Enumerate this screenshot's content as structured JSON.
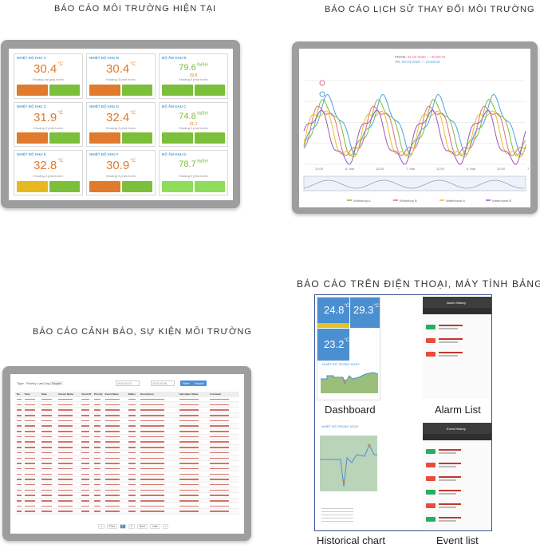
{
  "sections": {
    "current": "BÁO CÁO MÔI TRƯỜNG HIỆN TẠI",
    "history": "BÁO CÁO LỊCH SỬ THAY ĐỔI MÔI TRƯỜNG",
    "alarm": "BÁO CÁO CẢNH BÁO, SỰ KIỆN MÔI TRƯỜNG",
    "mobile": "BÁO CÁO TRÊN ĐIỆN THOẠI, MÁY TÍNH BẢNG"
  },
  "current_dashboard": {
    "tiles": [
      {
        "title": "NHIỆT ĐỘ KHU A",
        "value": "30.4",
        "unit": "°C",
        "sub": "Khoảng vài giây trước",
        "kind": "temp",
        "colors": [
          "#e07a2c",
          "#7bbf3a"
        ]
      },
      {
        "title": "NHIỆT ĐỘ KHU B",
        "value": "30.4",
        "unit": "°C",
        "sub": "Khoảng 3 phút trước",
        "kind": "temp",
        "colors": [
          "#e07a2c",
          "#7bbf3a"
        ]
      },
      {
        "title": "ĐỘ ẨM KHU B",
        "value": "79.6",
        "unit": "%RH",
        "sub2": "29.8",
        "sub": "Khoảng 3 phút trước",
        "kind": "hum",
        "colors": [
          "#7bbf3a",
          "#7bbf3a"
        ]
      },
      {
        "title": "NHIỆT ĐỘ KHU C",
        "value": "31.9",
        "unit": "°C",
        "sub": "Khoảng 3 phút trước",
        "kind": "temp",
        "colors": [
          "#e07a2c",
          "#7bbf3a"
        ]
      },
      {
        "title": "NHIỆT ĐỘ KHU D",
        "value": "32.4",
        "unit": "°C",
        "sub": "Khoảng 3 phút trước",
        "kind": "temp",
        "colors": [
          "#e07a2c",
          "#7bbf3a"
        ]
      },
      {
        "title": "ĐỘ ẨM KHU C",
        "value": "74.8",
        "unit": "%RH",
        "sub2": "31.1",
        "sub": "Khoảng 3 phút trước",
        "kind": "hum",
        "colors": [
          "#7bbf3a",
          "#7bbf3a"
        ]
      },
      {
        "title": "NHIỆT ĐỘ KHU E",
        "value": "32.8",
        "unit": "°C",
        "sub": "Khoảng 3 phút trước",
        "kind": "temp",
        "colors": [
          "#e8b820",
          "#7bbf3a"
        ]
      },
      {
        "title": "NHIỆT ĐỘ KHU F",
        "value": "30.9",
        "unit": "°C",
        "sub": "Khoảng 3 phút trước",
        "kind": "temp",
        "colors": [
          "#e07a2c",
          "#7bbf3a"
        ]
      },
      {
        "title": "ĐỘ ẨM KHU D",
        "value": "78.7",
        "unit": "%RH",
        "sub": "Khoảng 3 phút trước",
        "kind": "hum",
        "colors": [
          "#8fdc5a",
          "#8fdc5a"
        ]
      }
    ]
  },
  "history_chart": {
    "from_label": "FROM:",
    "to_label": "TO:",
    "from_value": "01-03-2020 — 00:00:34",
    "to_value": "08-03-2020 — 23:59:59",
    "x_ticks": [
      "12:00",
      "6. Mar",
      "12:00",
      "7. Mar",
      "12:00",
      "6. Mar",
      "12:00",
      "7. Mar"
    ],
    "legend": [
      "Workshop A",
      "Workshop B",
      "Warehouse A",
      "Warehouse B"
    ],
    "series_colors": [
      "#4aa3df",
      "#7bbf3a",
      "#e06a8a",
      "#e8c020",
      "#9b59b6"
    ]
  },
  "alarm_table": {
    "toolbar": [
      "Type",
      "Priority",
      "Last Day",
      "Export"
    ],
    "date_from": "2020-03-01",
    "date_to": "2020-03-08",
    "buttons": [
      "Filter",
      "Export"
    ],
    "columns": [
      "No.",
      "Time",
      "Date",
      "Device Name",
      "Event ID",
      "Priority",
      "Event Name",
      "Status",
      "Description",
      "Calculated Value",
      "Comment"
    ],
    "pager": [
      "«",
      "First",
      "1",
      "2",
      "Next",
      "Last",
      "»"
    ]
  },
  "mobile": {
    "dashboard_values": [
      {
        "value": "24.8",
        "unit": "°C"
      },
      {
        "value": "29.3",
        "unit": "°C"
      },
      {
        "value": "23.2",
        "unit": "°C"
      }
    ],
    "chart_title": "NHIỆT ĐỘ TRONG NGÀY",
    "labels": {
      "dashboard": "Dashboard",
      "alarm_list": "Alarm List",
      "historical_chart": "Historical chart",
      "event_list": "Event list"
    },
    "alarm_header": "Alarm History",
    "event_header": "Event History"
  }
}
